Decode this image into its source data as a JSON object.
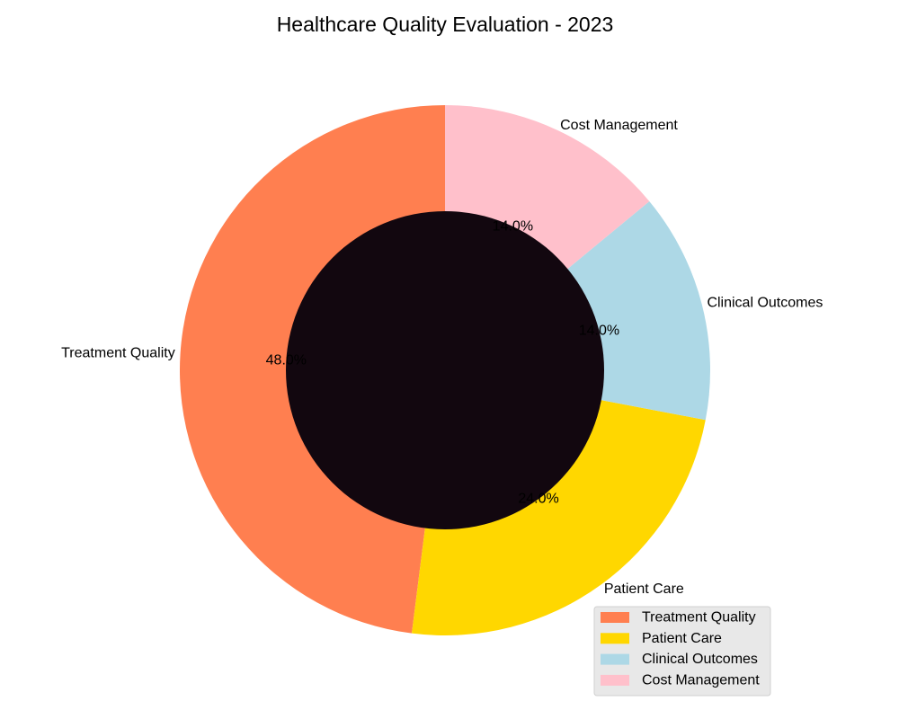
{
  "chart_data": {
    "type": "pie",
    "variant": "donut",
    "title": "Healthcare Quality Evaluation - 2023",
    "start_angle": "top, counter-clockwise",
    "center_color": "#12070F",
    "legend_position": "bottom-right",
    "slices": [
      {
        "label": "Treatment Quality",
        "value": 48.0,
        "pct_text": "48.0%",
        "color": "#FF7F50"
      },
      {
        "label": "Patient Care",
        "value": 24.0,
        "pct_text": "24.0%",
        "color": "#FFD700"
      },
      {
        "label": "Clinical Outcomes",
        "value": 14.0,
        "pct_text": "14.0%",
        "color": "#ADD8E6"
      },
      {
        "label": "Cost Management",
        "value": 14.0,
        "pct_text": "14.0%",
        "color": "#FFC0CB"
      }
    ],
    "legend": [
      "Treatment Quality",
      "Patient Care",
      "Clinical Outcomes",
      "Cost Management"
    ]
  }
}
